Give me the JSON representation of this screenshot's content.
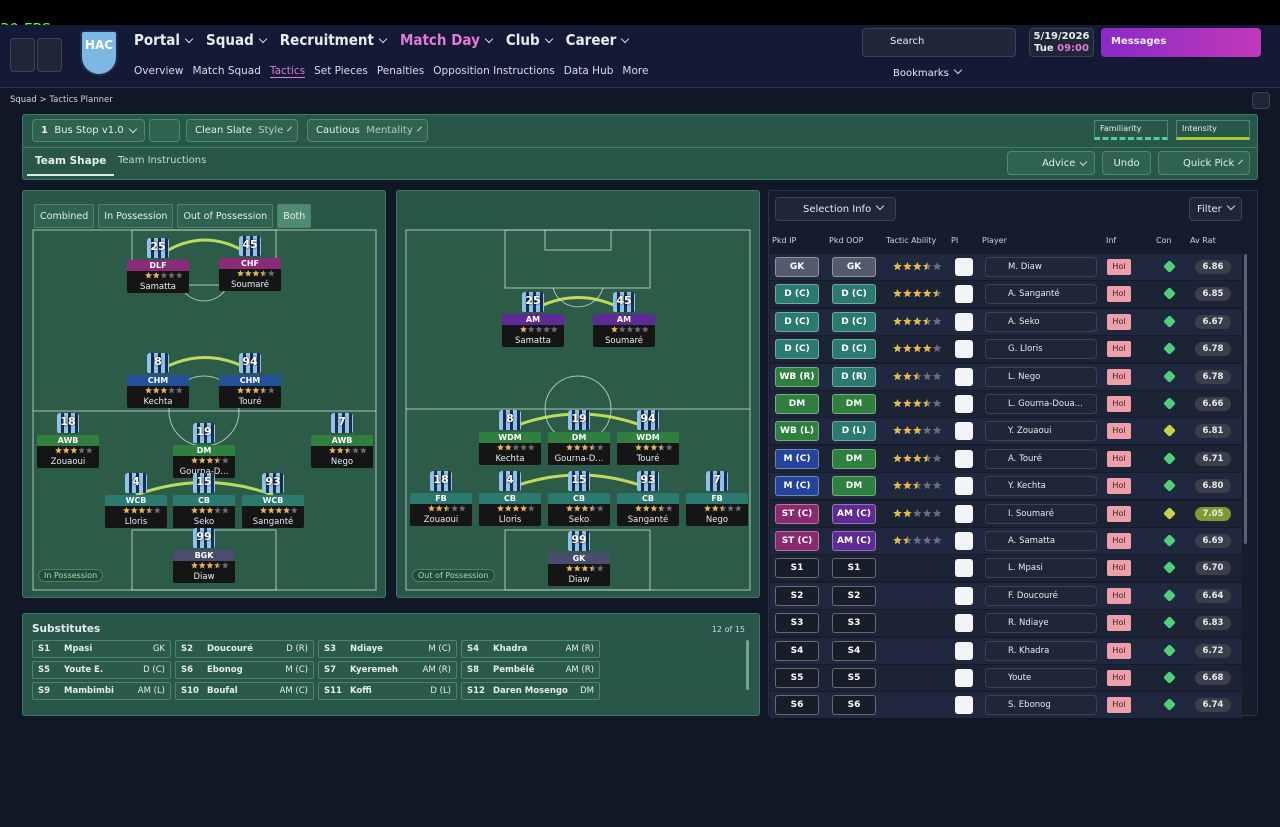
{
  "fps": "30 FPS",
  "header": {
    "club": "HAC",
    "nav": [
      "Portal",
      "Squad",
      "Recruitment",
      "Match Day",
      "Club",
      "Career"
    ],
    "subnav": [
      "Overview",
      "Match Squad",
      "Tactics",
      "Set Pieces",
      "Penalties",
      "Opposition Instructions",
      "Data Hub",
      "More"
    ],
    "search": "Search",
    "date": "5/19/2026",
    "day": "Tue",
    "time": "09:00",
    "messages": "Messages",
    "bookmarks": "Bookmarks"
  },
  "breadcrumb": [
    "Squad",
    "Tactics Planner"
  ],
  "toolbar": {
    "slot": "1",
    "tactic": "Bus Stop v1.0",
    "style_value": "Clean Slate",
    "style_label": "Style",
    "mentality_value": "Cautious",
    "mentality_label": "Mentality",
    "familiarity": "Familiarity",
    "intensity": "Intensity"
  },
  "tabs": [
    "Team Shape",
    "Team Instructions"
  ],
  "buttons": {
    "advice": "Advice",
    "undo": "Undo",
    "quick_pick": "Quick Pick"
  },
  "phase_tabs": [
    "Combined",
    "In Possession",
    "Out of Possession",
    "Both"
  ],
  "pitch_ip": {
    "label": "In Possession",
    "players": [
      {
        "number": "25",
        "role": "DLF",
        "name": "Samatta",
        "stars": 2,
        "color": "#8a2a78"
      },
      {
        "number": "45",
        "role": "CHF",
        "name": "Soumaré",
        "stars": 3.5,
        "color": "#8a2a78"
      },
      {
        "number": "8",
        "role": "CHM",
        "name": "Kechta",
        "stars": 3,
        "color": "#24509a"
      },
      {
        "number": "94",
        "role": "CHM",
        "name": "Touré",
        "stars": 3.5,
        "color": "#24509a"
      },
      {
        "number": "18",
        "role": "AWB",
        "name": "Zouaoui",
        "stars": 3,
        "color": "#2f7f3e"
      },
      {
        "number": "19",
        "role": "DM",
        "name": "Gourna-D...",
        "stars": 3.5,
        "color": "#2f7f3e"
      },
      {
        "number": "7",
        "role": "AWB",
        "name": "Nego",
        "stars": 2.5,
        "color": "#2f7f3e"
      },
      {
        "number": "4",
        "role": "WCB",
        "name": "Lloris",
        "stars": 3.5,
        "color": "#2b7a70"
      },
      {
        "number": "15",
        "role": "CB",
        "name": "Seko",
        "stars": 3,
        "color": "#2b7a70"
      },
      {
        "number": "93",
        "role": "WCB",
        "name": "Sanganté",
        "stars": 4,
        "color": "#2b7a70"
      },
      {
        "number": "99",
        "role": "BGK",
        "name": "Diaw",
        "stars": 3.5,
        "color": "#4b4d6e"
      }
    ]
  },
  "pitch_oop": {
    "label": "Out of Possession",
    "players": [
      {
        "number": "25",
        "role": "AM",
        "name": "Samatta",
        "stars": 1,
        "color": "#5e2a94"
      },
      {
        "number": "45",
        "role": "AM",
        "name": "Soumaré",
        "stars": 1,
        "color": "#5e2a94"
      },
      {
        "number": "8",
        "role": "WDM",
        "name": "Kechta",
        "stars": 2,
        "color": "#2f7f3e"
      },
      {
        "number": "19",
        "role": "DM",
        "name": "Gourna-D...",
        "stars": 3.5,
        "color": "#2f7f3e"
      },
      {
        "number": "94",
        "role": "WDM",
        "name": "Touré",
        "stars": 3.5,
        "color": "#2f7f3e"
      },
      {
        "number": "18",
        "role": "FB",
        "name": "Zouaoui",
        "stars": 2.5,
        "color": "#2b7a70"
      },
      {
        "number": "4",
        "role": "CB",
        "name": "Lloris",
        "stars": 4,
        "color": "#2b7a70"
      },
      {
        "number": "15",
        "role": "CB",
        "name": "Seko",
        "stars": 3.5,
        "color": "#2b7a70"
      },
      {
        "number": "93",
        "role": "CB",
        "name": "Sanganté",
        "stars": 3.5,
        "color": "#2b7a70"
      },
      {
        "number": "7",
        "role": "FB",
        "name": "Nego",
        "stars": 2.5,
        "color": "#2b7a70"
      },
      {
        "number": "99",
        "role": "GK",
        "name": "Diaw",
        "stars": 3.5,
        "color": "#4b4d6e"
      }
    ]
  },
  "substitutes": {
    "title": "Substitutes",
    "count": "12 of 15",
    "players": [
      {
        "slot": "S1",
        "name": "Mpasi",
        "position": "GK"
      },
      {
        "slot": "S2",
        "name": "Doucouré",
        "position": "D (R)"
      },
      {
        "slot": "S3",
        "name": "Ndiaye",
        "position": "M (C)"
      },
      {
        "slot": "S4",
        "name": "Khadra",
        "position": "AM (R)"
      },
      {
        "slot": "S5",
        "name": "Youte E.",
        "position": "D (C)"
      },
      {
        "slot": "S6",
        "name": "Ebonog",
        "position": "M (C)"
      },
      {
        "slot": "S7",
        "name": "Kyeremeh",
        "position": "AM (R)"
      },
      {
        "slot": "S8",
        "name": "Pembélé",
        "position": "AM (R)"
      },
      {
        "slot": "S9",
        "name": "Mambimbi",
        "position": "AM (L)"
      },
      {
        "slot": "S10",
        "name": "Boufal",
        "position": "AM (C)"
      },
      {
        "slot": "S11",
        "name": "Koffi",
        "position": "D (L)"
      },
      {
        "slot": "S12",
        "name": "Daren Mosengo",
        "position": "DM"
      }
    ]
  },
  "selection": {
    "title": "Selection Info",
    "filter": "Filter",
    "columns": [
      "Pkd IP",
      "Pkd OOP",
      "Tactic Ability",
      "PI",
      "Player",
      "Inf",
      "Con",
      "Av Rat"
    ],
    "rows": [
      {
        "ip": "GK",
        "ip_color": "#555b6e",
        "oop": "GK",
        "oop_color": "#555b6e",
        "stars": 3.5,
        "player": "M. Diaw",
        "inf": "Hol",
        "con_color": "#4cd07a",
        "rating": "6.86",
        "rating_color": "#3a3f4a"
      },
      {
        "ip": "D (C)",
        "ip_color": "#2b7a70",
        "oop": "D (C)",
        "oop_color": "#2b7a70",
        "stars": 4.5,
        "player": "A. Sanganté",
        "inf": "Hol",
        "con_color": "#4cd07a",
        "rating": "6.85",
        "rating_color": "#3a3f4a"
      },
      {
        "ip": "D (C)",
        "ip_color": "#2b7a70",
        "oop": "D (C)",
        "oop_color": "#2b7a70",
        "stars": 3.5,
        "player": "A. Seko",
        "inf": "Hol",
        "con_color": "#4cd07a",
        "rating": "6.67",
        "rating_color": "#3a3f4a"
      },
      {
        "ip": "D (C)",
        "ip_color": "#2b7a70",
        "oop": "D (C)",
        "oop_color": "#2b7a70",
        "stars": 4,
        "player": "G. Lloris",
        "inf": "Hol",
        "con_color": "#4cd07a",
        "rating": "6.78",
        "rating_color": "#3a3f4a"
      },
      {
        "ip": "WB (R)",
        "ip_color": "#2f7f3e",
        "oop": "D (R)",
        "oop_color": "#2b7a70",
        "stars": 2.5,
        "player": "L. Nego",
        "inf": "Hol",
        "con_color": "#4cd07a",
        "rating": "6.78",
        "rating_color": "#3a3f4a"
      },
      {
        "ip": "DM",
        "ip_color": "#2f7f3e",
        "oop": "DM",
        "oop_color": "#2f7f3e",
        "stars": 3.5,
        "player": "L. Gourna-Doua...",
        "inf": "Hol",
        "con_color": "#4cd07a",
        "rating": "6.66",
        "rating_color": "#3a3f4a"
      },
      {
        "ip": "WB (L)",
        "ip_color": "#2f7f3e",
        "oop": "D (L)",
        "oop_color": "#2b7a70",
        "stars": 3,
        "player": "Y. Zouaoui",
        "inf": "Hol",
        "con_color": "#c8d04c",
        "rating": "6.81",
        "rating_color": "#3a3f4a"
      },
      {
        "ip": "M (C)",
        "ip_color": "#24449a",
        "oop": "DM",
        "oop_color": "#2f7f3e",
        "stars": 3.5,
        "player": "A. Touré",
        "inf": "Hol",
        "con_color": "#4cd07a",
        "rating": "6.71",
        "rating_color": "#3a3f4a"
      },
      {
        "ip": "M (C)",
        "ip_color": "#24449a",
        "oop": "DM",
        "oop_color": "#2f7f3e",
        "stars": 2.5,
        "player": "Y. Kechta",
        "inf": "Hol",
        "con_color": "#4cd07a",
        "rating": "6.80",
        "rating_color": "#3a3f4a"
      },
      {
        "ip": "ST (C)",
        "ip_color": "#8a2a6e",
        "oop": "AM (C)",
        "oop_color": "#5e2a94",
        "stars": 2,
        "player": "I. Soumaré",
        "inf": "Hol",
        "con_color": "#c8d04c",
        "rating": "7.05",
        "rating_color": "#7e9a35"
      },
      {
        "ip": "ST (C)",
        "ip_color": "#8a2a6e",
        "oop": "AM (C)",
        "oop_color": "#5e2a94",
        "stars": 1.5,
        "player": "A. Samatta",
        "inf": "Hol",
        "con_color": "#4cd07a",
        "rating": "6.69",
        "rating_color": "#3a3f4a"
      },
      {
        "ip": "S1",
        "ip_color": "#181d2a",
        "oop": "S1",
        "oop_color": "#181d2a",
        "player": "L. Mpasi",
        "inf": "Hol",
        "con_color": "#4cd07a",
        "rating": "6.70",
        "rating_color": "#3a3f4a"
      },
      {
        "ip": "S2",
        "ip_color": "#181d2a",
        "oop": "S2",
        "oop_color": "#181d2a",
        "player": "F. Doucouré",
        "inf": "Hol",
        "con_color": "#4cd07a",
        "rating": "6.64",
        "rating_color": "#3a3f4a"
      },
      {
        "ip": "S3",
        "ip_color": "#181d2a",
        "oop": "S3",
        "oop_color": "#181d2a",
        "player": "R. Ndiaye",
        "inf": "Hol",
        "con_color": "#4cd07a",
        "rating": "6.83",
        "rating_color": "#3a3f4a"
      },
      {
        "ip": "S4",
        "ip_color": "#181d2a",
        "oop": "S4",
        "oop_color": "#181d2a",
        "player": "R. Khadra",
        "inf": "Hol",
        "con_color": "#4cd07a",
        "rating": "6.72",
        "rating_color": "#3a3f4a"
      },
      {
        "ip": "S5",
        "ip_color": "#181d2a",
        "oop": "S5",
        "oop_color": "#181d2a",
        "player": "Youte",
        "inf": "Hol",
        "con_color": "#4cd07a",
        "rating": "6.68",
        "rating_color": "#3a3f4a"
      },
      {
        "ip": "S6",
        "ip_color": "#181d2a",
        "oop": "S6",
        "oop_color": "#181d2a",
        "player": "S. Ebonog",
        "inf": "Hol",
        "con_color": "#4cd07a",
        "rating": "6.74",
        "rating_color": "#3a3f4a"
      }
    ]
  }
}
